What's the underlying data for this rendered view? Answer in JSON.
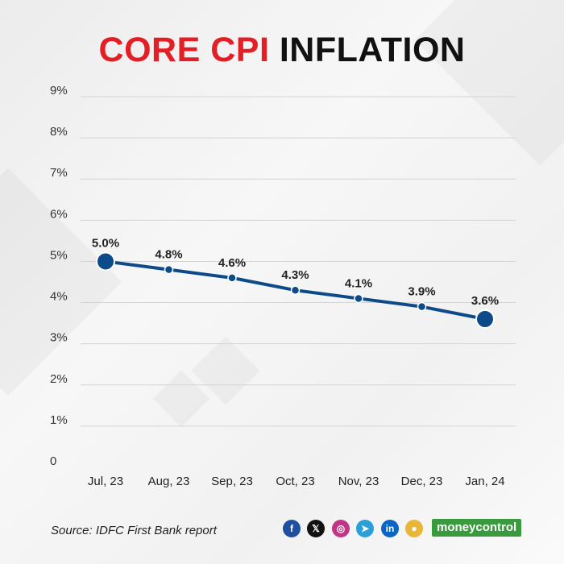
{
  "title": {
    "part1": "CORE CPI",
    "part2": "INFLATION"
  },
  "source": "Source: IDFC First Bank report",
  "social_icons": [
    {
      "name": "facebook-icon",
      "glyph": "f",
      "color": "#1f4fa0"
    },
    {
      "name": "x-icon",
      "glyph": "𝕏",
      "color": "#111111"
    },
    {
      "name": "instagram-icon",
      "glyph": "◎",
      "color": "#c13584"
    },
    {
      "name": "telegram-icon",
      "glyph": "➤",
      "color": "#2a9fd8"
    },
    {
      "name": "linkedin-icon",
      "glyph": "in",
      "color": "#0a66c2"
    },
    {
      "name": "moneycontrol-app-icon",
      "glyph": "●",
      "color": "#e8b73a"
    }
  ],
  "brand": "moneycontrol",
  "colors": {
    "title_accent": "#e31e24",
    "title_dark": "#111111",
    "line": "#0d4a8a",
    "brand": "#3a9a3e"
  },
  "chart_data": {
    "type": "line",
    "title": "CORE CPI INFLATION",
    "categories": [
      "Jul, 23",
      "Aug, 23",
      "Sep, 23",
      "Oct, 23",
      "Nov, 23",
      "Dec, 23",
      "Jan, 24"
    ],
    "values": [
      5.0,
      4.8,
      4.6,
      4.3,
      4.1,
      3.9,
      3.6
    ],
    "data_labels": [
      "5.0%",
      "4.8%",
      "4.6%",
      "4.3%",
      "4.1%",
      "3.9%",
      "3.6%"
    ],
    "y_ticks": [
      0,
      1,
      2,
      3,
      4,
      5,
      6,
      7,
      8,
      9
    ],
    "y_tick_labels": [
      "0",
      "1%",
      "2%",
      "3%",
      "4%",
      "5%",
      "6%",
      "7%",
      "8%",
      "9%"
    ],
    "ylim": [
      0,
      9
    ],
    "grid": true,
    "xlabel": "",
    "ylabel": ""
  }
}
